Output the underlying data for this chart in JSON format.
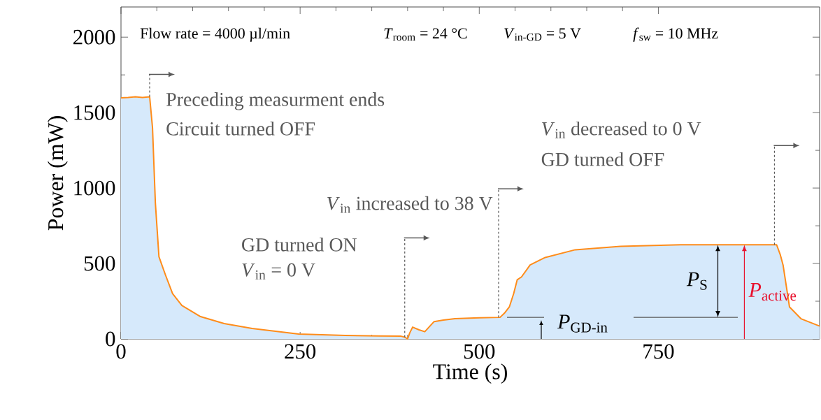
{
  "chart_data": {
    "type": "area",
    "xlabel": "Time (s)",
    "ylabel": "Power (mW)",
    "color": "#ff8c1a",
    "x": [
      0,
      10,
      20,
      30,
      40,
      44,
      48,
      53,
      62,
      72,
      85,
      111,
      144,
      183,
      248,
      313,
      360,
      391,
      396,
      400,
      403,
      407,
      416,
      424,
      437,
      450,
      466,
      500,
      529,
      535,
      542,
      548,
      553,
      559,
      571,
      592,
      634,
      697,
      781,
      865,
      915,
      920,
      924,
      933,
      949,
      975
    ],
    "values": [
      1598,
      1600,
      1605,
      1600,
      1605,
      1400,
      900,
      545,
      425,
      300,
      222,
      148,
      102,
      69,
      32,
      23,
      20,
      18,
      12,
      0,
      40,
      78,
      60,
      48,
      115,
      125,
      134,
      140,
      143,
      170,
      212,
      300,
      392,
      411,
      490,
      540,
      591,
      614,
      624,
      624,
      624,
      560,
      490,
      212,
      134,
      85
    ],
    "xlim": [
      0,
      975
    ],
    "ylim": [
      0,
      2200
    ],
    "xticks": [
      0,
      250,
      500,
      750
    ],
    "yticks": [
      0,
      500,
      1000,
      1500,
      2000
    ],
    "ref_lines": [
      {
        "axis": "x",
        "value": 40,
        "label": "Preceding measurment ends",
        "color": "#595959",
        "line_style": "dashed"
      },
      {
        "axis": "x",
        "value": 396,
        "label": "GD turned ON",
        "color": "#595959",
        "line_style": "dashed"
      },
      {
        "axis": "x",
        "value": 527,
        "label": "*V*$_{in}$ increased to 38 V",
        "color": "#595959",
        "line_style": "dashed"
      },
      {
        "axis": "x",
        "value": 912,
        "color": "#595959",
        "line_style": "dashed"
      },
      {
        "axis": "y",
        "value": 143,
        "label": "*P*$_{GD-in}$",
        "color": "#595959",
        "line_style": "solid"
      }
    ],
    "annotations": [
      "Flow rate = 4000 µl/min",
      "*T*$_{room}$ = 24 °C",
      "*V*$_{in-GD}$ = 5 V",
      "*f*$_{sw}$ = 10 MHz",
      "Circuit turned OFF",
      "*V*$_{in}$ = 0 V",
      "GD turned OFF",
      {
        "text": "*P*$_{S}$",
        "x": 833,
        "y": 624
      },
      {
        "text": "*P*$_{active}$",
        "x": 870,
        "y": 624
      },
      "*V*$_{in}$ decreased to 0 V"
    ]
  }
}
